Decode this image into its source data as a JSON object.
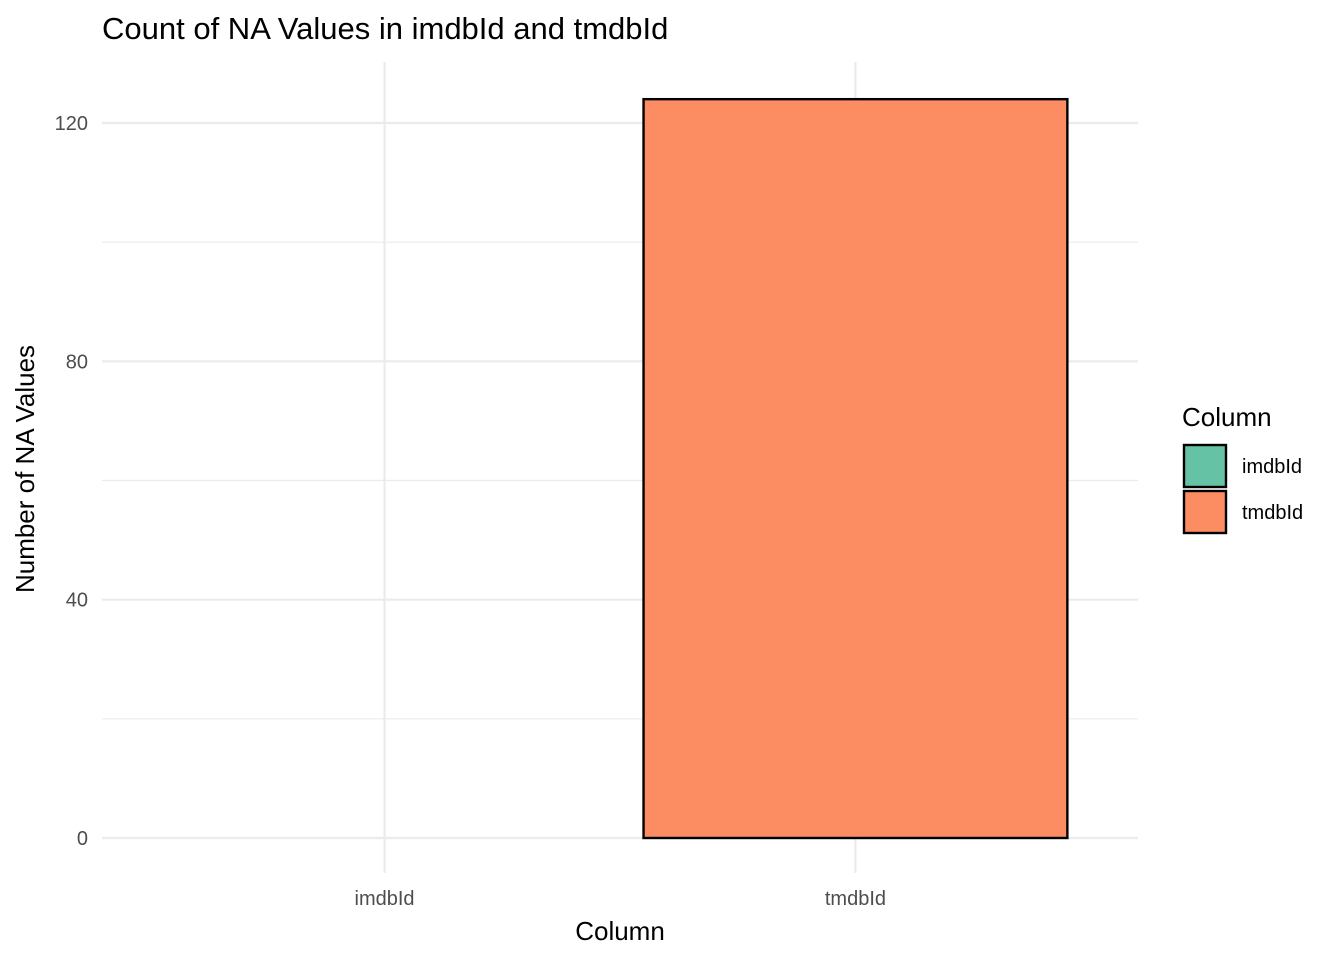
{
  "chart_data": {
    "type": "bar",
    "title": "Count of NA Values in imdbId and tmdbId",
    "xlabel": "Column",
    "ylabel": "Number of NA Values",
    "categories": [
      "imdbId",
      "tmdbId"
    ],
    "values": [
      0,
      124
    ],
    "colors": [
      "#66c2a5",
      "#fc8d62"
    ],
    "bar_outline_color": "#000000",
    "ylim": [
      0,
      130
    ],
    "yticks": [
      0,
      40,
      80,
      120
    ],
    "yticks_minor": [
      20,
      60,
      100
    ],
    "grid": true,
    "legend": {
      "title": "Column",
      "position": "right",
      "entries": [
        {
          "label": "imdbId",
          "color": "#66c2a5"
        },
        {
          "label": "tmdbId",
          "color": "#fc8d62"
        }
      ]
    }
  }
}
